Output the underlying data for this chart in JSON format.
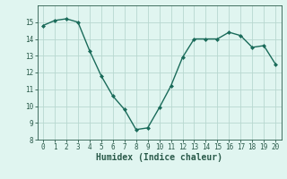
{
  "x": [
    0,
    1,
    2,
    3,
    4,
    5,
    6,
    7,
    8,
    9,
    10,
    11,
    12,
    13,
    14,
    15,
    16,
    17,
    18,
    19,
    20
  ],
  "y": [
    14.8,
    15.1,
    15.2,
    15.0,
    13.3,
    11.8,
    10.6,
    9.8,
    8.6,
    8.7,
    9.9,
    11.2,
    12.9,
    14.0,
    14.0,
    14.0,
    14.4,
    14.2,
    13.5,
    13.6,
    12.5
  ],
  "line_color": "#1a6b5a",
  "marker": "D",
  "marker_size": 2.0,
  "line_width": 1.0,
  "xlabel": "Humidex (Indice chaleur)",
  "xlabel_fontsize": 7,
  "bg_color": "#e0f5f0",
  "grid_color": "#b8d8d0",
  "axis_color": "#2a5a4a",
  "ylim": [
    8,
    16
  ],
  "xlim": [
    -0.5,
    20.5
  ],
  "yticks": [
    8,
    9,
    10,
    11,
    12,
    13,
    14,
    15
  ],
  "xticks": [
    0,
    1,
    2,
    3,
    4,
    5,
    6,
    7,
    8,
    9,
    10,
    11,
    12,
    13,
    14,
    15,
    16,
    17,
    18,
    19,
    20
  ],
  "tick_fontsize": 5.5
}
